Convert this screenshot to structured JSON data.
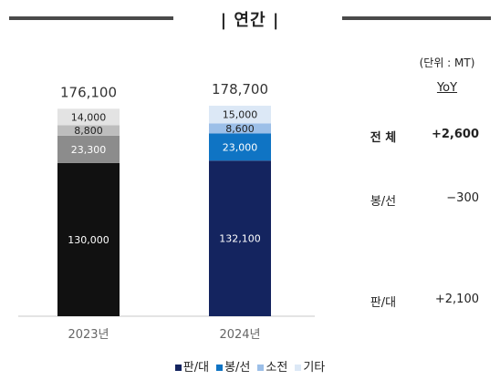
{
  "title": "| 연간 |",
  "unit_note": "(단위 : MT)",
  "yoy": {
    "header": "YoY",
    "rows": [
      {
        "label": "전 체",
        "value": "+2,600"
      },
      {
        "label": "봉/선",
        "value": "−300"
      },
      {
        "label": "판/대",
        "value": "+2,100"
      }
    ]
  },
  "chart_data": {
    "type": "bar",
    "stacked": true,
    "categories": [
      "2023년",
      "2024년"
    ],
    "totals": [
      "176,100",
      "178,700"
    ],
    "total_values": [
      176100,
      178700
    ],
    "ylim": [
      0,
      180000
    ],
    "series": [
      {
        "name": "판/대",
        "values": [
          130000,
          132100
        ],
        "labels": [
          "130,000",
          "132,100"
        ],
        "colors": [
          "#111111",
          "#14245f"
        ],
        "label_colors": [
          "#ffffff",
          "#ffffff"
        ]
      },
      {
        "name": "봉/선",
        "values": [
          23300,
          23000
        ],
        "labels": [
          "23,300",
          "23,000"
        ],
        "colors": [
          "#8c8c8c",
          "#0f74c4"
        ],
        "label_colors": [
          "#ffffff",
          "#ffffff"
        ]
      },
      {
        "name": "소전",
        "values": [
          8800,
          8600
        ],
        "labels": [
          "8,800",
          "8,600"
        ],
        "colors": [
          "#bdbdbd",
          "#9cbfe8"
        ],
        "label_colors": [
          "#222222",
          "#222222"
        ]
      },
      {
        "name": "기타",
        "values": [
          14000,
          15000
        ],
        "labels": [
          "14,000",
          "15,000"
        ],
        "colors": [
          "#e3e3e3",
          "#dce8f6"
        ],
        "label_colors": [
          "#222222",
          "#222222"
        ]
      }
    ],
    "legend": {
      "position": "bottom",
      "items": [
        {
          "name": "판/대",
          "color": "#14245f"
        },
        {
          "name": "봉/선",
          "color": "#0f74c4"
        },
        {
          "name": "소전",
          "color": "#9cbfe8"
        },
        {
          "name": "기타",
          "color": "#dce8f6"
        }
      ]
    }
  }
}
